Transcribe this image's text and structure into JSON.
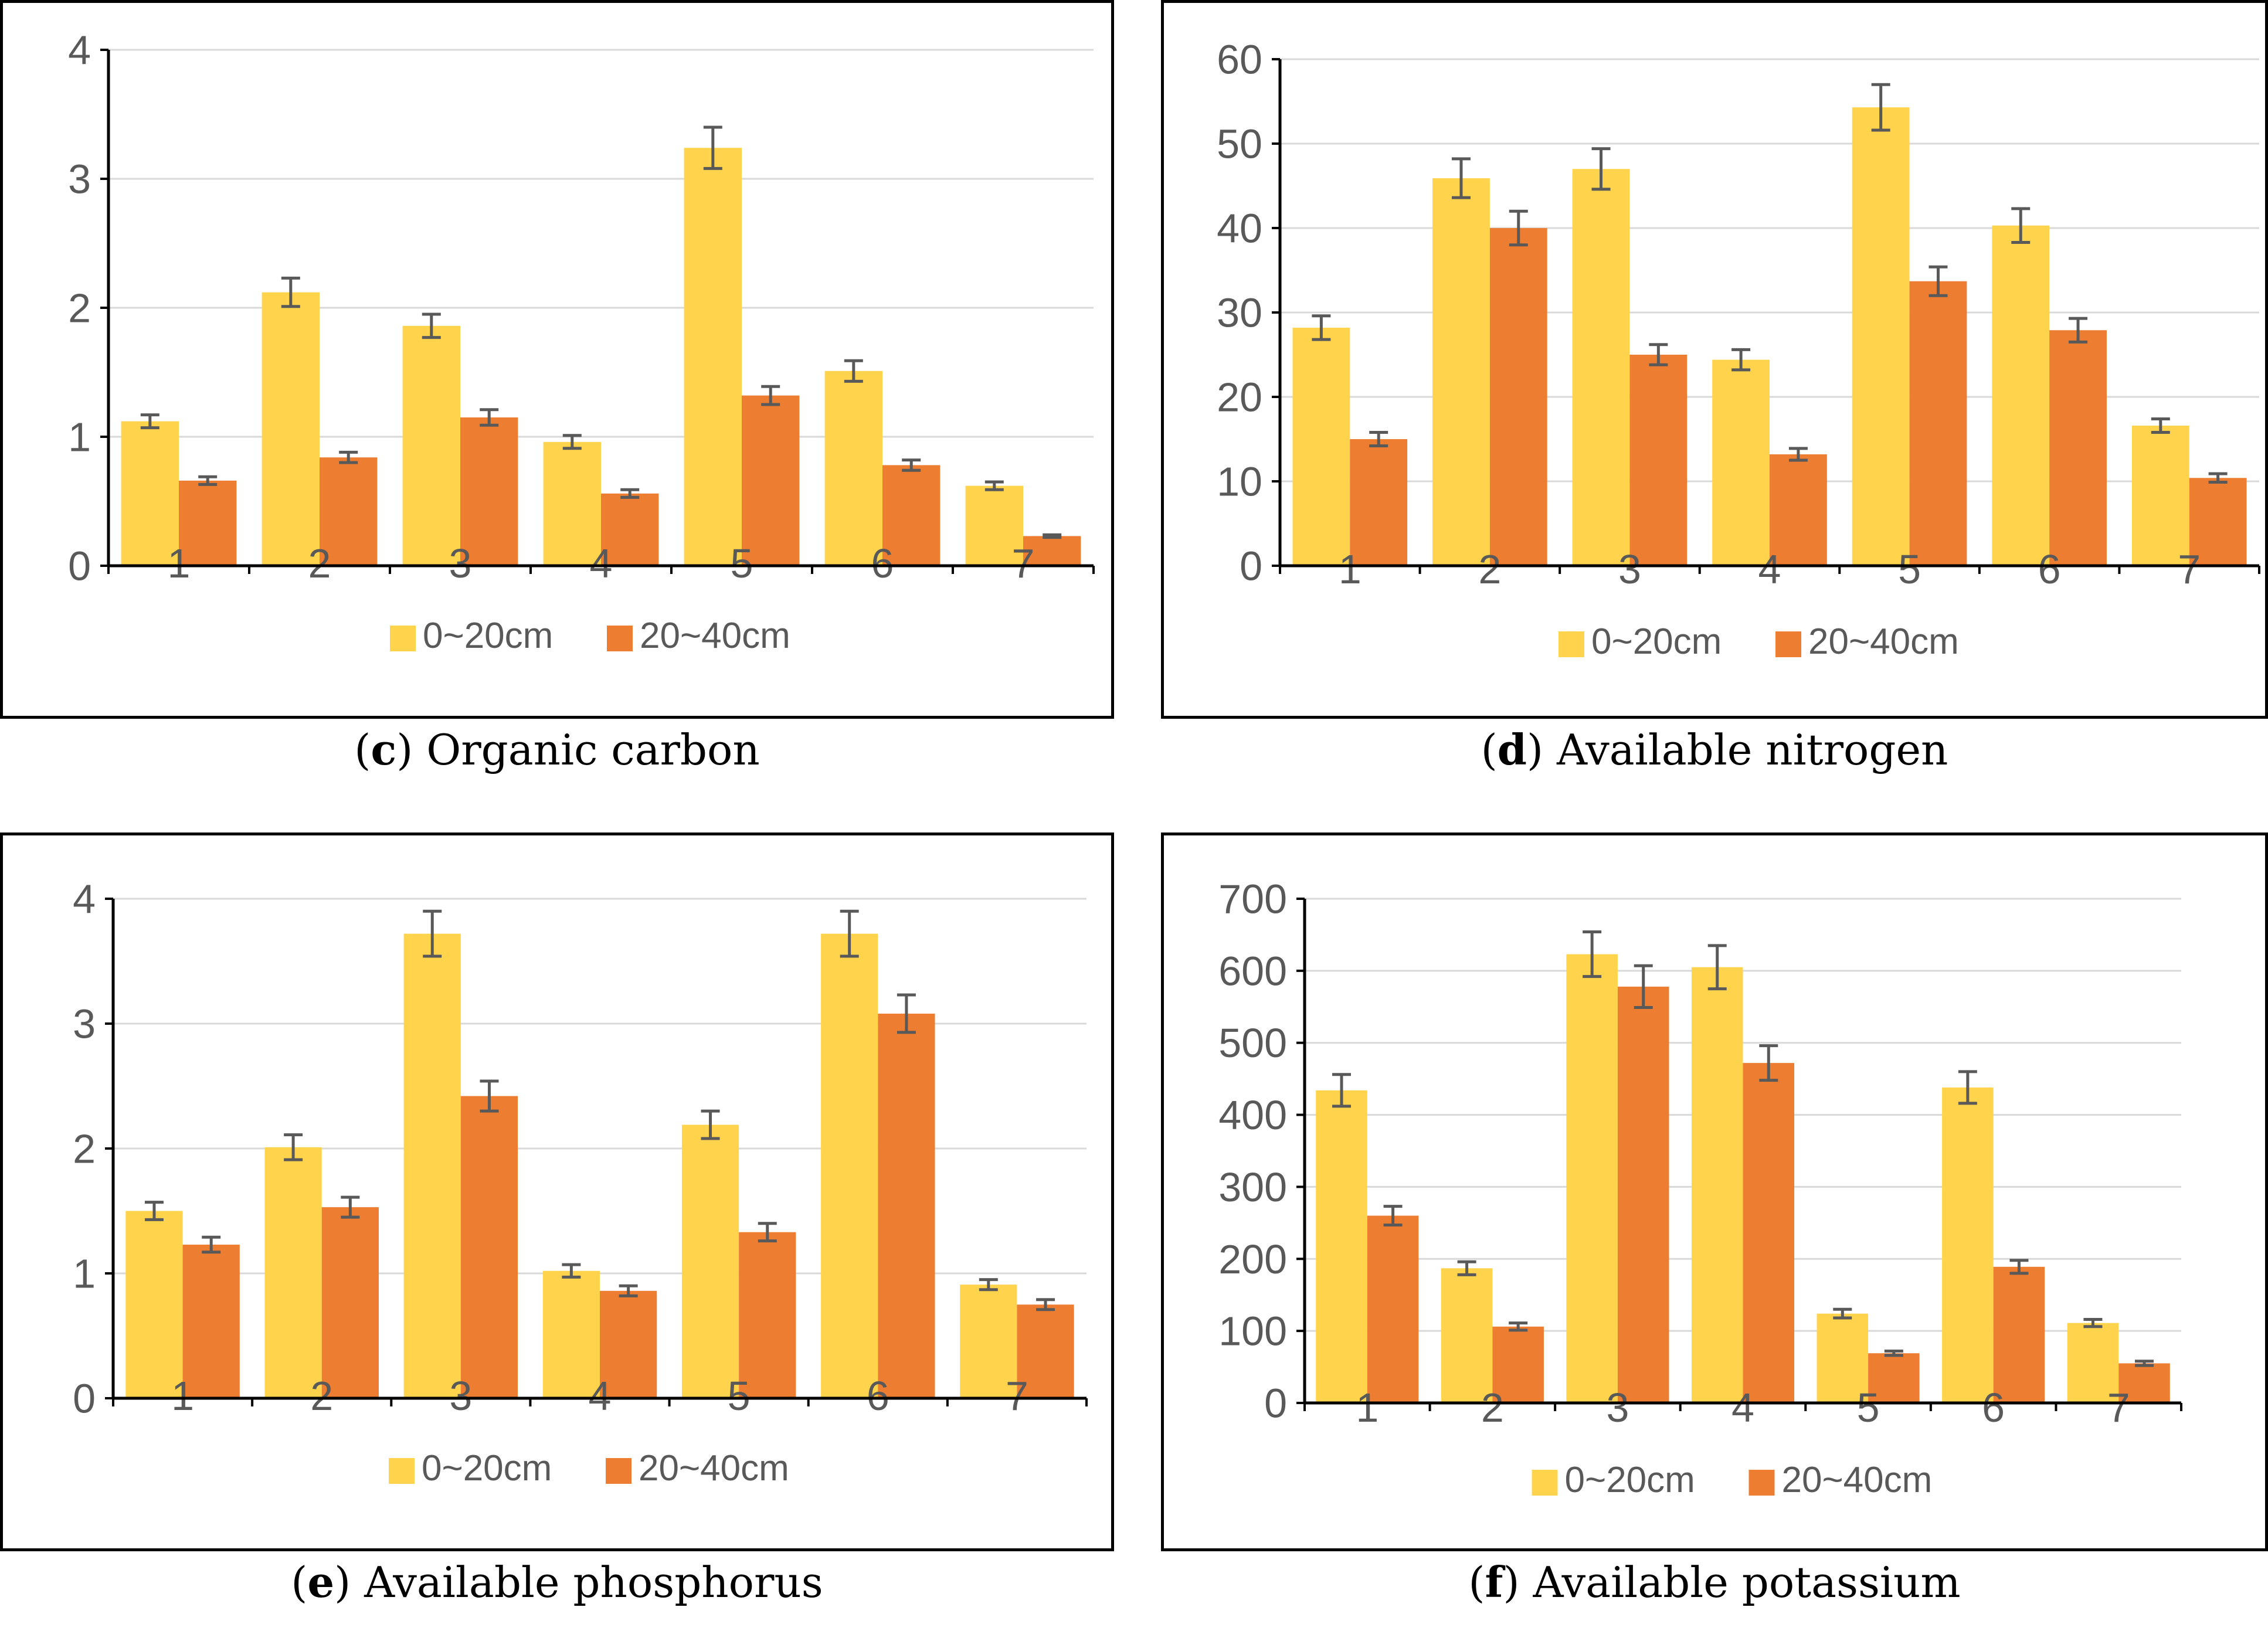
{
  "legend": {
    "series_a": "0~20cm",
    "series_b": "20~40cm"
  },
  "colors": {
    "series_a": "#FFD44C",
    "series_b": "#ED7D31",
    "grid": "#D9D9D9",
    "axis": "#000000",
    "error": "#595959",
    "text": "#595959"
  },
  "chart_data": [
    {
      "id": "c",
      "type": "bar",
      "caption_letter": "c",
      "caption_text": "Organic carbon",
      "categories": [
        "1",
        "2",
        "3",
        "4",
        "5",
        "6",
        "7"
      ],
      "series": [
        {
          "name": "0~20cm",
          "values": [
            1.12,
            2.12,
            1.86,
            0.96,
            3.24,
            1.51,
            0.62
          ],
          "errors": [
            0.05,
            0.11,
            0.09,
            0.05,
            0.16,
            0.08,
            0.03
          ]
        },
        {
          "name": "20~40cm",
          "values": [
            0.66,
            0.84,
            1.15,
            0.56,
            1.32,
            0.78,
            0.23
          ],
          "errors": [
            0.03,
            0.04,
            0.06,
            0.03,
            0.07,
            0.04,
            0.01
          ]
        }
      ],
      "yticks": [
        "0",
        "1",
        "2",
        "3",
        "4"
      ],
      "ylim": [
        0,
        4
      ],
      "ystep": 1,
      "xlabel": "",
      "ylabel": "",
      "grid": true,
      "legend_position": "bottom"
    },
    {
      "id": "d",
      "type": "bar",
      "caption_letter": "d",
      "caption_text": "Available nitrogen",
      "categories": [
        "1",
        "2",
        "3",
        "4",
        "5",
        "6",
        "7"
      ],
      "series": [
        {
          "name": "0~20cm",
          "values": [
            28.2,
            45.9,
            47.0,
            24.4,
            54.3,
            40.3,
            16.6
          ],
          "errors": [
            1.4,
            2.3,
            2.4,
            1.2,
            2.7,
            2.0,
            0.8
          ]
        },
        {
          "name": "20~40cm",
          "values": [
            15.0,
            40.0,
            25.0,
            13.2,
            33.7,
            27.9,
            10.4
          ],
          "errors": [
            0.8,
            2.0,
            1.2,
            0.7,
            1.7,
            1.4,
            0.5
          ]
        }
      ],
      "yticks": [
        "0",
        "10",
        "20",
        "30",
        "40",
        "50",
        "60"
      ],
      "ylim": [
        0,
        60
      ],
      "ystep": 10,
      "xlabel": "",
      "ylabel": "",
      "grid": true,
      "legend_position": "bottom"
    },
    {
      "id": "e",
      "type": "bar",
      "caption_letter": "e",
      "caption_text": "Available phosphorus",
      "categories": [
        "1",
        "2",
        "3",
        "4",
        "5",
        "6",
        "7"
      ],
      "series": [
        {
          "name": "0~20cm",
          "values": [
            1.5,
            2.01,
            3.72,
            1.02,
            2.19,
            3.72,
            0.91
          ],
          "errors": [
            0.07,
            0.1,
            0.18,
            0.05,
            0.11,
            0.18,
            0.04
          ]
        },
        {
          "name": "20~40cm",
          "values": [
            1.23,
            1.53,
            2.42,
            0.86,
            1.33,
            3.08,
            0.75
          ],
          "errors": [
            0.06,
            0.08,
            0.12,
            0.04,
            0.07,
            0.15,
            0.04
          ]
        }
      ],
      "yticks": [
        "0",
        "1",
        "2",
        "3",
        "4"
      ],
      "ylim": [
        0,
        4
      ],
      "ystep": 1,
      "xlabel": "",
      "ylabel": "",
      "grid": true,
      "legend_position": "bottom"
    },
    {
      "id": "f",
      "type": "bar",
      "caption_letter": "f",
      "caption_text": "Available potassium",
      "categories": [
        "1",
        "2",
        "3",
        "4",
        "5",
        "6",
        "7"
      ],
      "series": [
        {
          "name": "0~20cm",
          "values": [
            434,
            187,
            623,
            605,
            124,
            438,
            111
          ],
          "errors": [
            22,
            9,
            31,
            30,
            6,
            22,
            5
          ]
        },
        {
          "name": "20~40cm",
          "values": [
            260,
            106,
            578,
            472,
            69,
            189,
            55
          ],
          "errors": [
            13,
            5,
            29,
            24,
            3,
            9,
            3
          ]
        }
      ],
      "yticks": [
        "0",
        "100",
        "200",
        "300",
        "400",
        "500",
        "600",
        "700"
      ],
      "ylim": [
        0,
        700
      ],
      "ystep": 100,
      "xlabel": "",
      "ylabel": "",
      "grid": true,
      "legend_position": "bottom"
    }
  ]
}
